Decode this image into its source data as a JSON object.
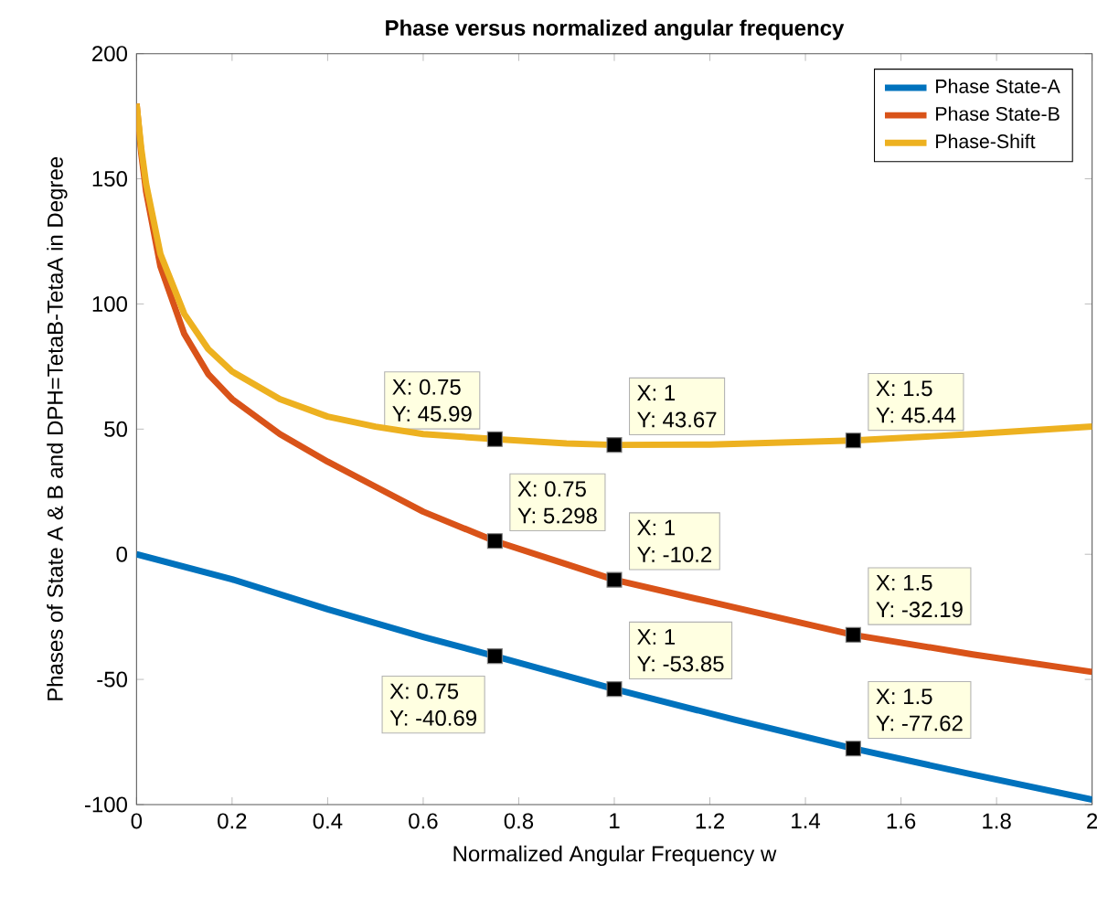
{
  "chart_data": {
    "type": "line",
    "title": "Phase versus normalized angular frequency",
    "xlabel": "Normalized Angular Frequency w",
    "ylabel": "Phases of State A & B and DPH=TetaB-TetaA in Degree",
    "xlim": [
      0,
      2
    ],
    "ylim": [
      -100,
      200
    ],
    "xticks": [
      0,
      0.2,
      0.4,
      0.6,
      0.8,
      1,
      1.2,
      1.4,
      1.6,
      1.8,
      2
    ],
    "yticks": [
      -100,
      -50,
      0,
      50,
      100,
      150,
      200
    ],
    "grid": false,
    "legend": "top right",
    "marker": "none",
    "line_style": "solid",
    "series": [
      {
        "name": "Phase State-A",
        "color": "#0072bd",
        "x": [
          0,
          0.2,
          0.4,
          0.6,
          0.75,
          1,
          1.25,
          1.5,
          1.75,
          2
        ],
        "values": [
          0,
          -10,
          -22,
          -33,
          -40.69,
          -53.85,
          -66,
          -77.62,
          -88,
          -98
        ]
      },
      {
        "name": "Phase State-B",
        "color": "#d95319",
        "x": [
          0,
          0.01,
          0.02,
          0.05,
          0.1,
          0.15,
          0.2,
          0.3,
          0.4,
          0.5,
          0.6,
          0.75,
          0.9,
          1,
          1.2,
          1.5,
          1.75,
          2
        ],
        "values": [
          180,
          160,
          145,
          115,
          88,
          72,
          62,
          48,
          37,
          27,
          17,
          5.298,
          -4,
          -10.2,
          -19,
          -32.19,
          -40,
          -47
        ]
      },
      {
        "name": "Phase-Shift",
        "color": "#edb120",
        "x": [
          0,
          0.01,
          0.02,
          0.05,
          0.1,
          0.15,
          0.2,
          0.3,
          0.4,
          0.5,
          0.6,
          0.75,
          0.9,
          1,
          1.2,
          1.5,
          1.75,
          2
        ],
        "values": [
          180,
          162,
          148,
          120,
          96,
          82,
          73,
          62,
          55,
          51,
          48,
          45.99,
          44.3,
          43.67,
          43.8,
          45.44,
          48,
          51
        ]
      }
    ],
    "annotations": [
      {
        "text": "X: 0.75",
        "x": 0.75,
        "y": 45.99
      },
      {
        "text": "Y: 45.99",
        "x": 0.75,
        "y": 45.99
      },
      {
        "text": "X: 1",
        "x": 1,
        "y": 43.67
      },
      {
        "text": "Y: 43.67",
        "x": 1,
        "y": 43.67
      },
      {
        "text": "X: 1.5",
        "x": 1.5,
        "y": 45.44
      },
      {
        "text": "Y: 45.44",
        "x": 1.5,
        "y": 45.44
      },
      {
        "text": "X: 0.75",
        "x": 0.75,
        "y": 5.298
      },
      {
        "text": "Y: 5.298",
        "x": 0.75,
        "y": 5.298
      },
      {
        "text": "X: 1",
        "x": 1,
        "y": -10.2
      },
      {
        "text": "Y: -10.2",
        "x": 1,
        "y": -10.2
      },
      {
        "text": "X: 1.5",
        "x": 1.5,
        "y": -32.19
      },
      {
        "text": "Y: -32.19",
        "x": 1.5,
        "y": -32.19
      },
      {
        "text": "X: 0.75",
        "x": 0.75,
        "y": -40.69
      },
      {
        "text": "Y: -40.69",
        "x": 0.75,
        "y": -40.69
      },
      {
        "text": "X: 1",
        "x": 1,
        "y": -53.85
      },
      {
        "text": "Y: -53.85",
        "x": 1,
        "y": -53.85
      },
      {
        "text": "X: 1.5",
        "x": 1.5,
        "y": -77.62
      },
      {
        "text": "Y: -77.62",
        "x": 1.5,
        "y": -77.62
      }
    ]
  }
}
